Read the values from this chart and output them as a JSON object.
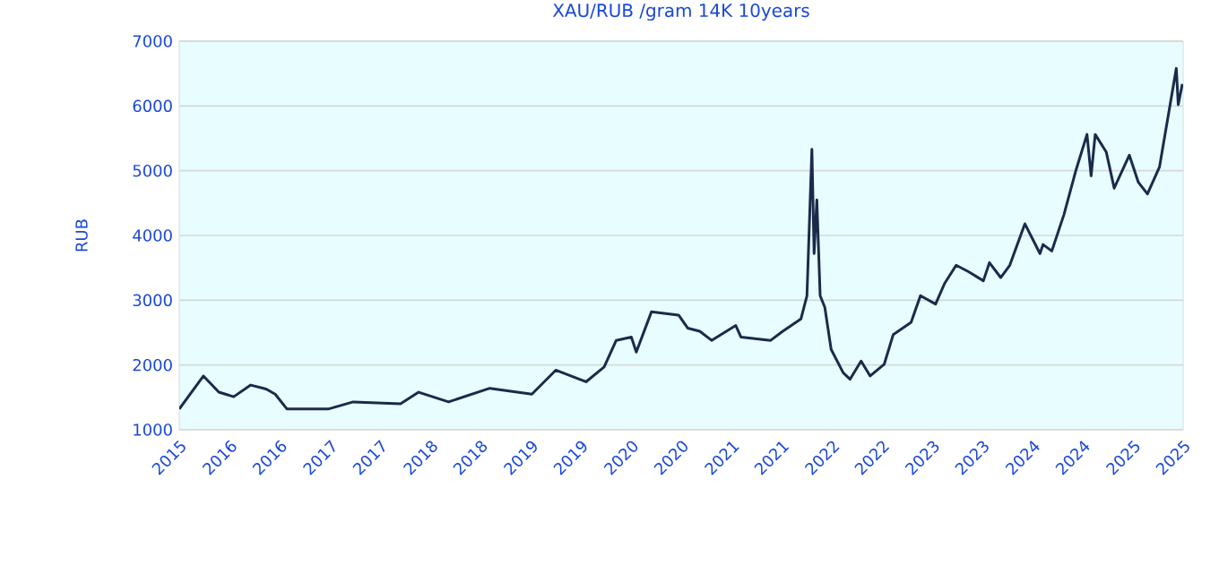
{
  "chart_data": {
    "type": "line",
    "title": "XAU/RUB /gram 14K 10years",
    "ylabel": "RUB",
    "x": [
      "2015-07-01",
      "2015-09-27",
      "2015-11-22",
      "2016-01-15",
      "2016-03-17",
      "2016-05-12",
      "2016-06-14",
      "2016-07-27",
      "2016-12-24",
      "2017-03-25",
      "2017-09-13",
      "2017-11-18",
      "2018-03-07",
      "2018-08-04",
      "2019-01-04",
      "2019-04-01",
      "2019-07-20",
      "2019-09-24",
      "2019-11-07",
      "2020-01-01",
      "2020-01-19",
      "2020-03-14",
      "2020-06-21",
      "2020-07-24",
      "2020-09-06",
      "2020-10-19",
      "2021-01-15",
      "2021-02-03",
      "2021-05-22",
      "2021-07-05",
      "2021-09-09",
      "2021-10-01",
      "2021-10-19",
      "2021-10-27",
      "2021-11-06",
      "2021-11-18",
      "2021-12-05",
      "2021-12-28",
      "2022-02-10",
      "2022-03-07",
      "2022-04-16",
      "2022-05-19",
      "2022-07-09",
      "2022-08-11",
      "2022-10-15",
      "2022-11-18",
      "2023-01-12",
      "2023-02-14",
      "2023-03-28",
      "2023-05-12",
      "2023-07-05",
      "2023-07-27",
      "2023-09-06",
      "2023-10-09",
      "2023-12-03",
      "2024-01-27",
      "2024-02-07",
      "2024-03-10",
      "2024-04-23",
      "2024-06-06",
      "2024-07-16",
      "2024-07-31",
      "2024-08-15",
      "2024-09-24",
      "2024-10-23",
      "2024-12-17",
      "2025-01-19",
      "2025-02-21",
      "2025-04-06",
      "2025-04-28",
      "2025-06-06",
      "2025-06-13",
      "2025-06-28"
    ],
    "series": [
      {
        "color": "#1b2a4a",
        "values": [
          1320,
          1830,
          1580,
          1510,
          1690,
          1630,
          1550,
          1320,
          1320,
          1430,
          1400,
          1580,
          1430,
          1640,
          1550,
          1920,
          1740,
          1970,
          2380,
          2430,
          2200,
          2820,
          2770,
          2570,
          2520,
          2380,
          2610,
          2430,
          2380,
          2520,
          2710,
          3070,
          5330,
          3720,
          4550,
          3070,
          2890,
          2240,
          1880,
          1780,
          2060,
          1830,
          2010,
          2470,
          2660,
          3070,
          2940,
          3260,
          3540,
          3440,
          3300,
          3580,
          3350,
          3540,
          4180,
          3720,
          3860,
          3760,
          4320,
          5010,
          5560,
          4920,
          5560,
          5290,
          4730,
          5240,
          4820,
          4640,
          5060,
          5610,
          6580,
          6020,
          6340
        ]
      }
    ],
    "xlim": [
      "2015-07-01",
      "2025-07-01"
    ],
    "xticks": [
      {
        "value": "2015-07-01",
        "label": "2015"
      },
      {
        "value": "2016-01-01",
        "label": "2016"
      },
      {
        "value": "2016-07-01",
        "label": "2016"
      },
      {
        "value": "2017-01-01",
        "label": "2017"
      },
      {
        "value": "2017-07-01",
        "label": "2017"
      },
      {
        "value": "2018-01-01",
        "label": "2018"
      },
      {
        "value": "2018-07-01",
        "label": "2018"
      },
      {
        "value": "2019-01-01",
        "label": "2019"
      },
      {
        "value": "2019-07-01",
        "label": "2019"
      },
      {
        "value": "2020-01-01",
        "label": "2020"
      },
      {
        "value": "2020-07-01",
        "label": "2020"
      },
      {
        "value": "2021-01-01",
        "label": "2021"
      },
      {
        "value": "2021-07-01",
        "label": "2021"
      },
      {
        "value": "2022-01-01",
        "label": "2022"
      },
      {
        "value": "2022-07-01",
        "label": "2022"
      },
      {
        "value": "2023-01-01",
        "label": "2023"
      },
      {
        "value": "2023-07-01",
        "label": "2023"
      },
      {
        "value": "2024-01-01",
        "label": "2024"
      },
      {
        "value": "2024-07-01",
        "label": "2024"
      },
      {
        "value": "2025-01-01",
        "label": "2025"
      },
      {
        "value": "2025-07-01",
        "label": "2025"
      }
    ],
    "ylim": [
      1000,
      7000
    ],
    "yticks": [
      1000,
      2000,
      3000,
      4000,
      5000,
      6000,
      7000
    ],
    "grid": "y",
    "marker": "none",
    "line_style": "solid"
  }
}
